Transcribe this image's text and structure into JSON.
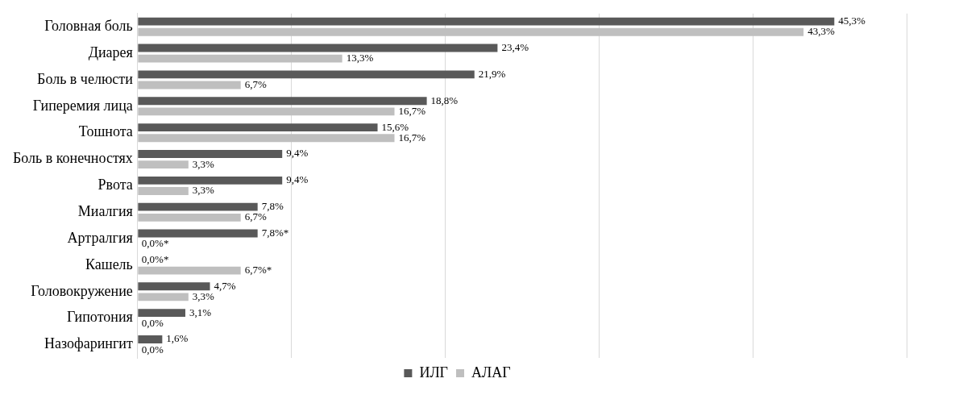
{
  "chart_data": {
    "type": "bar",
    "orientation": "horizontal",
    "categories": [
      "Головная боль",
      "Диарея",
      "Боль в челюсти",
      "Гиперемия лица",
      "Тошнота",
      "Боль в конечностях",
      "Рвота",
      "Миалгия",
      "Артралгия",
      "Кашель",
      "Головокружение",
      "Гипотония",
      "Назофарингит"
    ],
    "series": [
      {
        "name": "ИЛГ",
        "color": "#595959",
        "values": [
          45.3,
          23.4,
          21.9,
          18.8,
          15.6,
          9.4,
          9.4,
          7.8,
          7.8,
          0.0,
          4.7,
          3.1,
          1.6
        ],
        "value_labels": [
          "45,3%",
          "23,4%",
          "21,9%",
          "18,8%",
          "15,6%",
          "9,4%",
          "9,4%",
          "7,8%",
          "7,8%*",
          "0,0%*",
          "4,7%",
          "3,1%",
          "1,6%"
        ]
      },
      {
        "name": "АЛАГ",
        "color": "#bfbfbf",
        "values": [
          43.3,
          13.3,
          6.7,
          16.7,
          16.7,
          3.3,
          3.3,
          6.7,
          0.0,
          6.7,
          3.3,
          0.0,
          0.0
        ],
        "value_labels": [
          "43,3%",
          "13,3%",
          "6,7%",
          "16,7%",
          "16,7%",
          "3,3%",
          "3,3%",
          "6,7%",
          "0,0%*",
          "6,7%*",
          "3,3%",
          "0,0%",
          "0,0%"
        ]
      }
    ],
    "xlim": [
      0,
      50
    ],
    "xticks": [
      {
        "value": 0,
        "label": null
      },
      {
        "value": 10,
        "label": null
      },
      {
        "value": 20,
        "label": null
      },
      {
        "value": 30,
        "label": null
      },
      {
        "value": 40,
        "label": null
      },
      {
        "value": 50,
        "label": null
      }
    ],
    "grid": "x",
    "tick_labels": "y",
    "legend": "bottom"
  }
}
